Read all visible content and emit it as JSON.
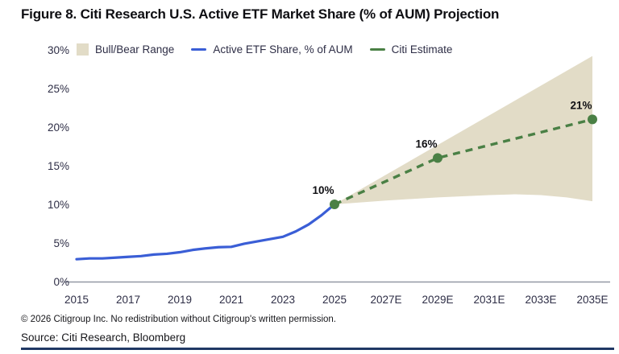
{
  "title": "Figure 8. Citi Research U.S. Active ETF Market Share (% of AUM) Projection",
  "legend": [
    {
      "label": "Bull/Bear Range",
      "type": "area",
      "color": "#e2dcc7"
    },
    {
      "label": "Active ETF Share, % of AUM",
      "type": "line",
      "color": "#3a5ed6"
    },
    {
      "label": "Citi Estimate",
      "type": "dashed-line",
      "color": "#4a8045"
    }
  ],
  "footer": {
    "copyright": "© 2026 Citigroup Inc. No redistribution without Citigroup's written permission.",
    "source": "Source: Citi Research, Bloomberg"
  },
  "colors": {
    "history_line": "#3a5ed6",
    "estimate_line": "#4a8045",
    "band_fill": "#e2dcc7",
    "axis_line": "#9298a4",
    "tick_text": "#2e2e46",
    "data_label_text": "#101014",
    "bottom_rule": "#1f3864"
  },
  "chart_data": {
    "type": "line",
    "title": "Figure 8. Citi Research U.S. Active ETF Market Share (% of AUM) Projection",
    "xlabel": "",
    "ylabel": "",
    "xlim": [
      2015,
      2035
    ],
    "ylim": [
      0,
      30
    ],
    "grid": false,
    "legend_position": "top-left",
    "x_ticks": [
      "2015",
      "2017",
      "2019",
      "2021",
      "2023",
      "2025",
      "2027E",
      "2029E",
      "2031E",
      "2033E",
      "2035E"
    ],
    "y_ticks": [
      "0%",
      "5%",
      "10%",
      "15%",
      "20%",
      "25%",
      "30%"
    ],
    "series": [
      {
        "name": "Active ETF Share, % of AUM",
        "style": "solid",
        "x": [
          2015,
          2015.5,
          2016,
          2016.5,
          2017,
          2017.5,
          2018,
          2018.5,
          2019,
          2019.5,
          2020,
          2020.5,
          2021,
          2021.5,
          2022,
          2022.5,
          2023,
          2023.5,
          2024,
          2024.5,
          2025
        ],
        "y": [
          2.9,
          3.0,
          3.0,
          3.1,
          3.2,
          3.3,
          3.5,
          3.6,
          3.8,
          4.1,
          4.3,
          4.45,
          4.5,
          4.9,
          5.2,
          5.5,
          5.8,
          6.5,
          7.4,
          8.6,
          10.0
        ]
      },
      {
        "name": "Citi Estimate",
        "style": "dashed-with-markers",
        "x": [
          2025,
          2029,
          2035
        ],
        "y": [
          10,
          16,
          21
        ],
        "point_labels": [
          "10%",
          "16%",
          "21%"
        ]
      }
    ],
    "band": {
      "name": "Bull/Bear Range",
      "upper": {
        "x": [
          2025,
          2035
        ],
        "y": [
          10,
          29.2
        ]
      },
      "lower": {
        "x": [
          2025,
          2027,
          2029,
          2031,
          2032,
          2033,
          2034,
          2035
        ],
        "y": [
          10,
          10.5,
          10.9,
          11.2,
          11.3,
          11.2,
          10.9,
          10.4
        ]
      }
    }
  }
}
